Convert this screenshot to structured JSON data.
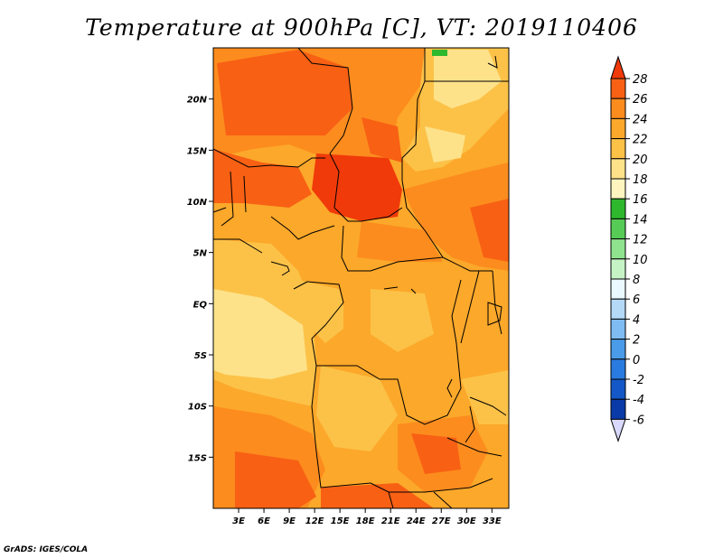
{
  "title": "Temperature at 900hPa [C], VT: 2019110406",
  "credit": "GrADS: IGES/COLA",
  "map": {
    "lon_range": [
      0,
      35
    ],
    "lat_range": [
      -20,
      25
    ],
    "lon_ticks": [
      {
        "value": 3,
        "label": "3E"
      },
      {
        "value": 6,
        "label": "6E"
      },
      {
        "value": 9,
        "label": "9E"
      },
      {
        "value": 12,
        "label": "12E"
      },
      {
        "value": 15,
        "label": "15E"
      },
      {
        "value": 18,
        "label": "18E"
      },
      {
        "value": 21,
        "label": "21E"
      },
      {
        "value": 24,
        "label": "24E"
      },
      {
        "value": 27,
        "label": "27E"
      },
      {
        "value": 30,
        "label": "30E"
      },
      {
        "value": 33,
        "label": "33E"
      }
    ],
    "lat_ticks": [
      {
        "value": 20,
        "label": "20N"
      },
      {
        "value": 15,
        "label": "15N"
      },
      {
        "value": 10,
        "label": "10N"
      },
      {
        "value": 5,
        "label": "5N"
      },
      {
        "value": 0,
        "label": "EQ"
      },
      {
        "value": -5,
        "label": "5S"
      },
      {
        "value": -10,
        "label": "10S"
      },
      {
        "value": -15,
        "label": "15S"
      }
    ]
  },
  "colorbar": {
    "levels": [
      "28",
      "26",
      "24",
      "22",
      "20",
      "18",
      "16",
      "14",
      "12",
      "10",
      "8",
      "6",
      "4",
      "2",
      "0",
      "-2",
      "-4",
      "-6"
    ],
    "colors": [
      "#f03a0a",
      "#f86014",
      "#fc8c1e",
      "#fca82a",
      "#fcc248",
      "#fde28a",
      "#fdf4bf",
      "#2eb82e",
      "#56cc56",
      "#8fe38f",
      "#c6f3c6",
      "#eaf8ff",
      "#b3d9f7",
      "#7ebcf2",
      "#4a9be8",
      "#2a7be0",
      "#1458c8",
      "#0a3aa8",
      "#001470"
    ]
  }
}
